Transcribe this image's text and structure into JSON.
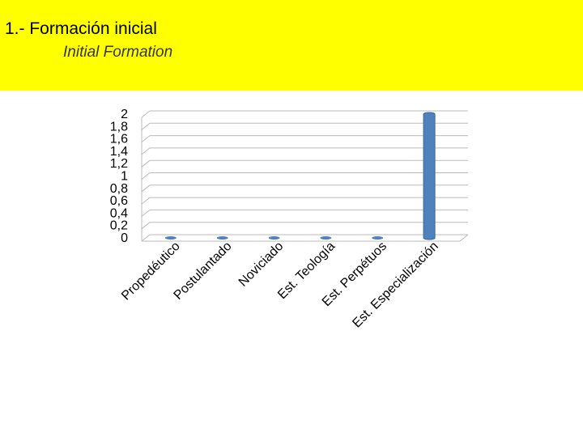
{
  "header": {
    "title": "1.- Formación inicial",
    "subtitle": "Initial Formation"
  },
  "chart_data": {
    "type": "bar",
    "categories": [
      "Propedéutico",
      "Postulantado",
      "Noviciado",
      "Est. Teología",
      "Est. Perpétuos",
      "Est. Especialización"
    ],
    "values": [
      0,
      0,
      0,
      0,
      0,
      2
    ],
    "color": "#4f81bd",
    "ylim": [
      0,
      2
    ],
    "yticks": [
      0,
      {
        "value": 0.2,
        "label": "0,2"
      },
      {
        "value": 0.4,
        "label": "0,4"
      },
      {
        "value": 0.6,
        "label": "0,6"
      },
      {
        "value": 0.8,
        "label": "0,8"
      },
      1,
      {
        "value": 1.2,
        "label": "1,2"
      },
      {
        "value": 1.4,
        "label": "1,4"
      },
      {
        "value": 1.6,
        "label": "1,6"
      },
      {
        "value": 1.8,
        "label": "1,8"
      },
      2
    ],
    "grid": true
  }
}
